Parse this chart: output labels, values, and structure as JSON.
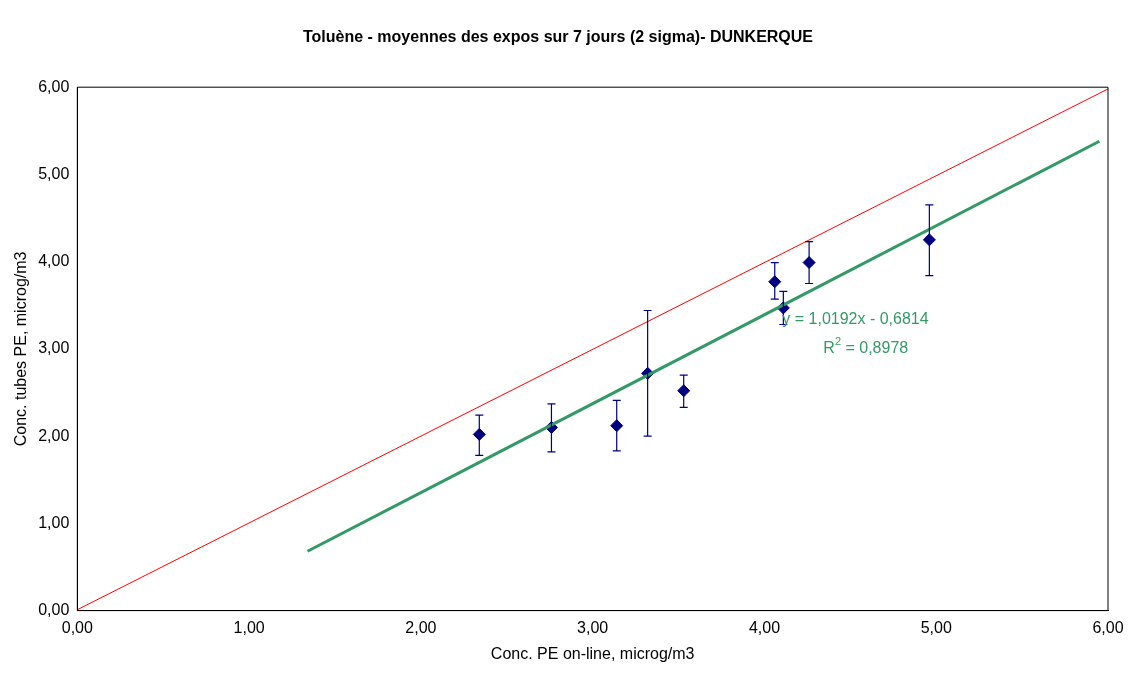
{
  "chart_data": {
    "type": "scatter",
    "title": "Toluène - moyennes des expos sur 7 jours (2 sigma)- DUNKERQUE",
    "xlabel": "Conc. PE on-line, microg/m3",
    "ylabel": "Conc. tubes PE, microg/m3",
    "xlim": [
      0,
      6
    ],
    "ylim": [
      0,
      6
    ],
    "xticks": [
      {
        "value": 0,
        "label": "0,00"
      },
      {
        "value": 1,
        "label": "1,00"
      },
      {
        "value": 2,
        "label": "2,00"
      },
      {
        "value": 3,
        "label": "3,00"
      },
      {
        "value": 4,
        "label": "4,00"
      },
      {
        "value": 5,
        "label": "5,00"
      },
      {
        "value": 6,
        "label": "6,00"
      }
    ],
    "yticks": [
      {
        "value": 0,
        "label": "0,00"
      },
      {
        "value": 1,
        "label": "1,00"
      },
      {
        "value": 2,
        "label": "2,00"
      },
      {
        "value": 3,
        "label": "3,00"
      },
      {
        "value": 4,
        "label": "4,00"
      },
      {
        "value": 5,
        "label": "5,00"
      },
      {
        "value": 6,
        "label": "6,00"
      }
    ],
    "grid": false,
    "legend": false,
    "series": [
      {
        "type": "line",
        "color": "#ff0000",
        "x": [
          0,
          6
        ],
        "values": [
          0.01,
          5.98
        ],
        "marker": "none"
      },
      {
        "type": "line",
        "color": "#339966",
        "x": [
          1.34,
          5.95
        ],
        "values": [
          0.68,
          5.38
        ],
        "marker": "none"
      },
      {
        "type": "scatter",
        "color": "#000080",
        "marker": "diamond",
        "x": [
          2.34,
          2.76,
          3.14,
          3.32,
          3.53,
          4.06,
          4.11,
          4.26,
          4.96
        ],
        "values": [
          2.02,
          2.1,
          2.12,
          2.72,
          2.52,
          3.77,
          3.47,
          3.99,
          4.25
        ],
        "errors": [
          [
            1.78,
            2.24
          ],
          [
            1.82,
            2.37
          ],
          [
            1.83,
            2.41
          ],
          [
            2.0,
            3.44
          ],
          [
            2.33,
            2.7
          ],
          [
            3.57,
            3.99
          ],
          [
            3.28,
            3.66
          ],
          [
            3.75,
            4.23
          ],
          [
            3.84,
            4.65
          ]
        ]
      }
    ],
    "annotations": [
      "y = 1,0192x - 0,6814",
      "R$^{2}$ = 0,8978"
    ]
  }
}
